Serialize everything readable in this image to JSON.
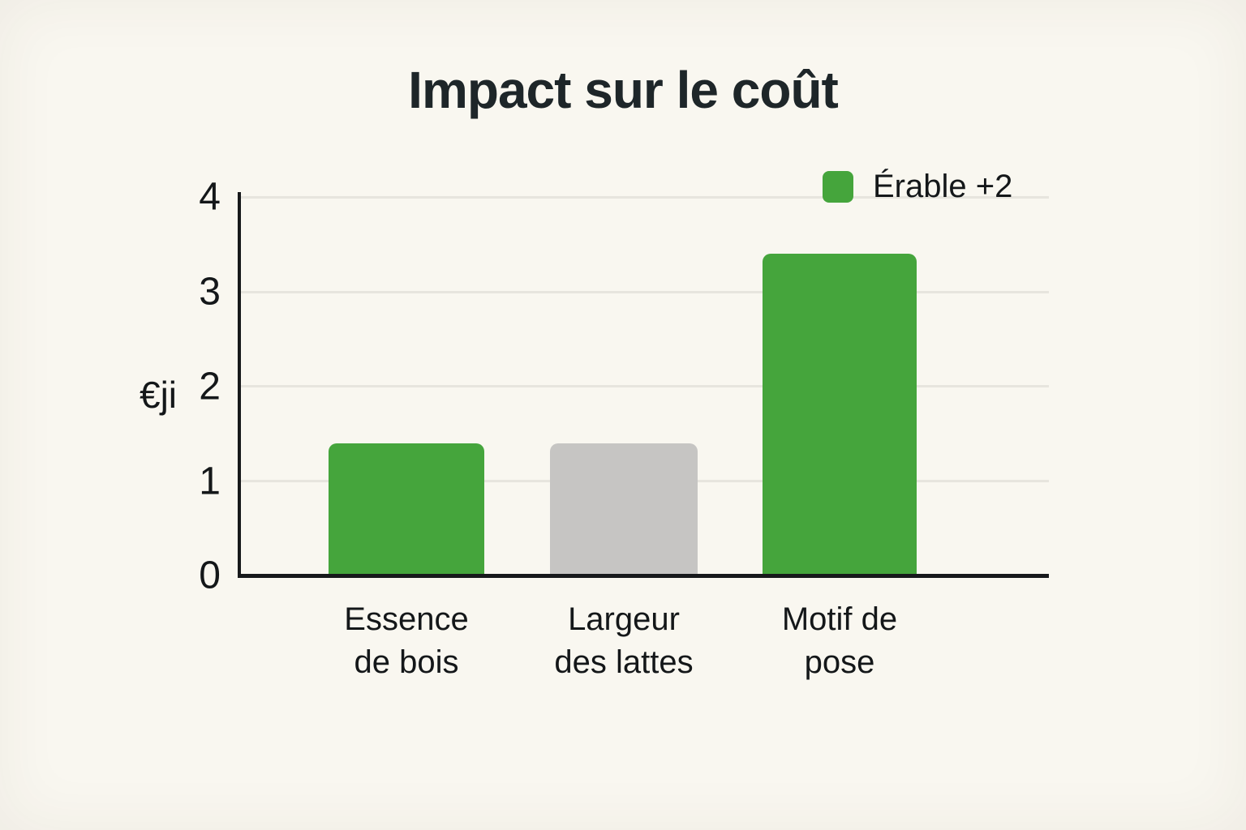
{
  "page": {
    "background_color": "#f9f7f0"
  },
  "chart_data": {
    "type": "bar",
    "title": "Impact sur le coût",
    "xlabel": "",
    "ylabel": "€ji",
    "categories": [
      "Essence\nde bois",
      "Largeur\ndes lattes",
      "Motif de\npose"
    ],
    "values": [
      1.4,
      1.4,
      3.4
    ],
    "bar_colors": [
      "#45a53c",
      "#c6c5c3",
      "#45a53c"
    ],
    "ylim": [
      0,
      4
    ],
    "yticks": [
      0,
      1,
      2,
      3,
      4
    ],
    "grid": true,
    "gridline_color": "#e7e5de",
    "axis_color": "#17191b",
    "legend": {
      "position": "top-right",
      "items": [
        {
          "label": "Érable +2",
          "color": "#45a53c"
        }
      ]
    }
  }
}
